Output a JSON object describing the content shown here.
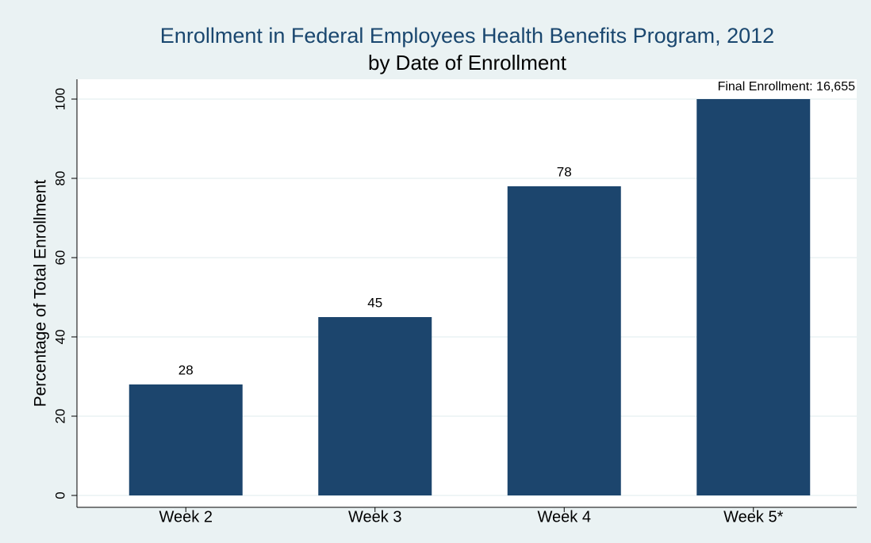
{
  "chart_data": {
    "type": "bar",
    "title": "Enrollment in Federal Employees Health Benefits Program, 2012",
    "subtitle": "by Date of Enrollment",
    "y_label": "Percentage of Total Enrollment",
    "annotation": "Final Enrollment: 16,655",
    "categories": [
      "Week 2",
      "Week 3",
      "Week 4",
      "Week 5*"
    ],
    "values": [
      28,
      45,
      78,
      100
    ],
    "value_labels": [
      "28",
      "45",
      "78",
      null
    ],
    "color": "#1c456d",
    "ylim": [
      0,
      100
    ],
    "yticks": [
      0,
      20,
      40,
      60,
      80,
      100
    ],
    "grid": true
  }
}
